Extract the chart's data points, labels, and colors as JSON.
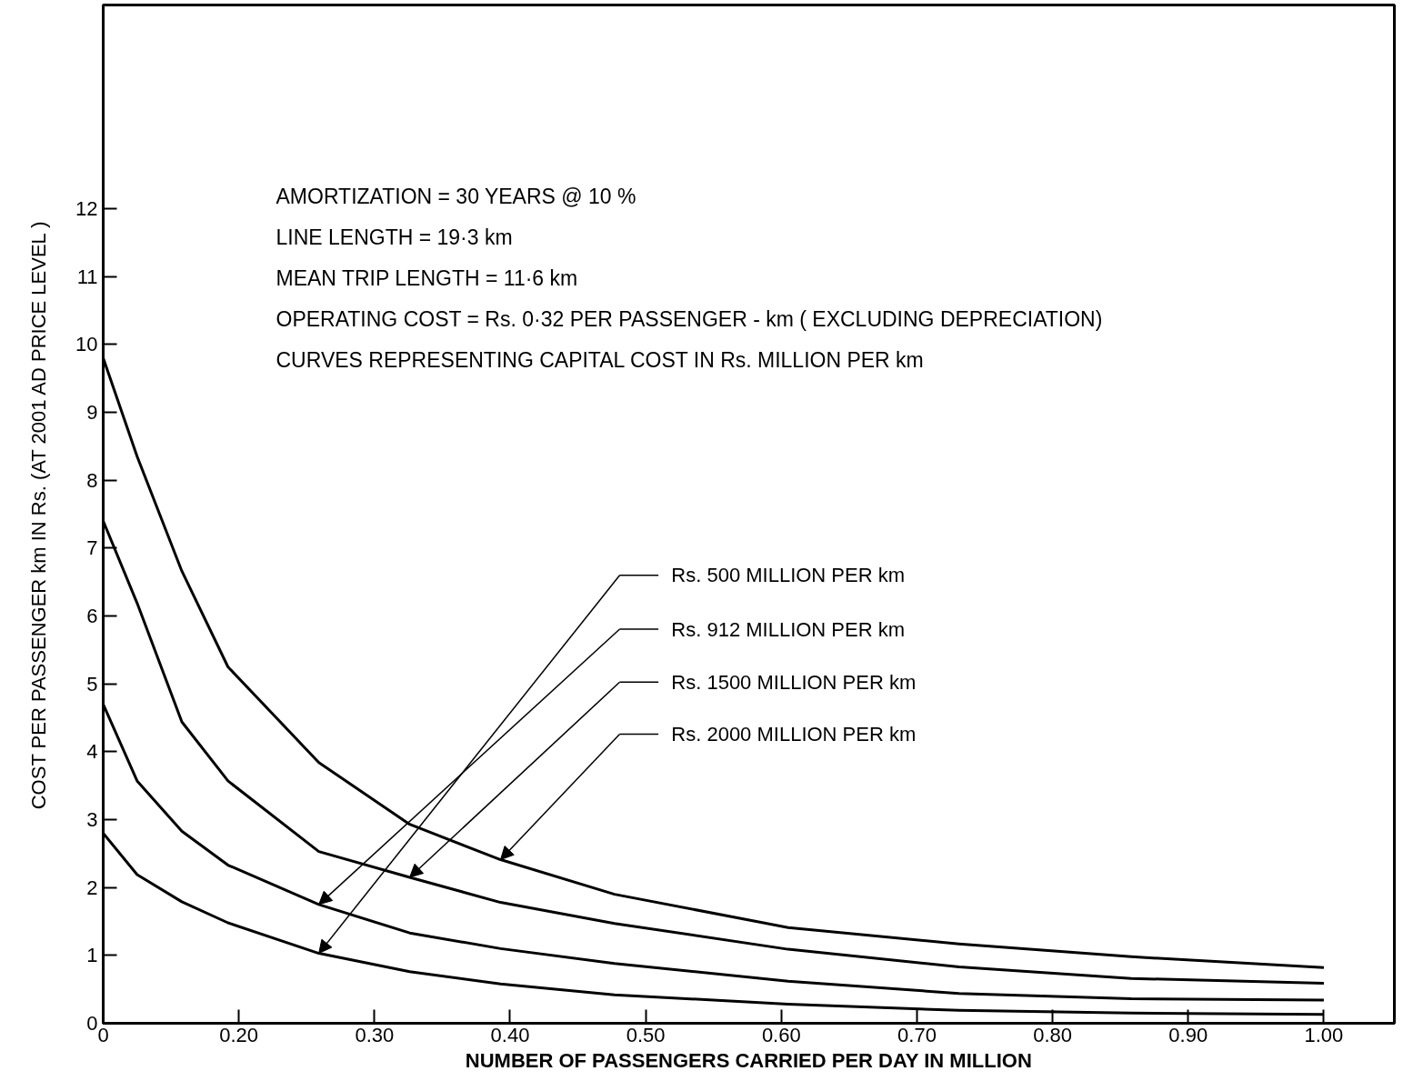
{
  "chart_data": {
    "type": "line",
    "xlabel": "NUMBER OF PASSENGERS CARRIED PER DAY IN MILLION",
    "ylabel": "COST PER PASSENGER km IN Rs. (AT 2001 AD PRICE LEVEL )",
    "annotations": [
      "AMORTIZATION  =  30 YEARS @ 10 %",
      "LINE LENGTH  =  19·3 km",
      "MEAN TRIP LENGTH = 11·6 km",
      "OPERATING COST = Rs. 0·32 PER PASSENGER - km ( EXCLUDING DEPRECIATION)",
      "CURVES REPRESENTING CAPITAL COST IN Rs. MILLION PER km"
    ],
    "x": [
      0.1,
      0.125,
      0.158,
      0.192,
      0.259,
      0.326,
      0.393,
      0.477,
      0.605,
      0.731,
      0.858,
      1.0
    ],
    "series": [
      {
        "name": "Rs. 500 MILLION PER km",
        "color": "#000000",
        "values": [
          2.8,
          2.19,
          1.79,
          1.48,
          1.03,
          0.76,
          0.58,
          0.42,
          0.28,
          0.19,
          0.15,
          0.13
        ]
      },
      {
        "name": "Rs. 912 MILLION PER km",
        "color": "#000000",
        "values": [
          4.7,
          3.57,
          2.83,
          2.33,
          1.75,
          1.33,
          1.1,
          0.88,
          0.62,
          0.44,
          0.36,
          0.34
        ]
      },
      {
        "name": "Rs. 1500 MILLION PER km",
        "color": "#000000",
        "values": [
          7.4,
          6.19,
          4.44,
          3.57,
          2.53,
          2.15,
          1.78,
          1.47,
          1.09,
          0.83,
          0.66,
          0.59
        ]
      },
      {
        "name": "Rs. 2000 MILLION PER km",
        "color": "#000000",
        "values": [
          9.8,
          8.35,
          6.66,
          5.25,
          3.84,
          2.93,
          2.41,
          1.9,
          1.41,
          1.17,
          0.98,
          0.82
        ]
      }
    ],
    "xlim": [
      0.1,
      1.052
    ],
    "ylim": [
      0,
      15
    ],
    "xticks": [
      {
        "value": 0.1,
        "label": "0"
      },
      {
        "value": 0.2,
        "label": "0.20"
      },
      {
        "value": 0.3,
        "label": "0.30"
      },
      {
        "value": 0.4,
        "label": "0.40"
      },
      {
        "value": 0.5,
        "label": "0.50"
      },
      {
        "value": 0.6,
        "label": "0.60"
      },
      {
        "value": 0.7,
        "label": "0.70"
      },
      {
        "value": 0.8,
        "label": "0.80"
      },
      {
        "value": 0.9,
        "label": "0.90"
      },
      {
        "value": 1.0,
        "label": "1.00"
      }
    ],
    "yticks": [
      0,
      1,
      2,
      3,
      4,
      5,
      6,
      7,
      8,
      9,
      10,
      11,
      12
    ],
    "grid": false,
    "legend": "center",
    "marker": "none",
    "line_style": "solid"
  }
}
